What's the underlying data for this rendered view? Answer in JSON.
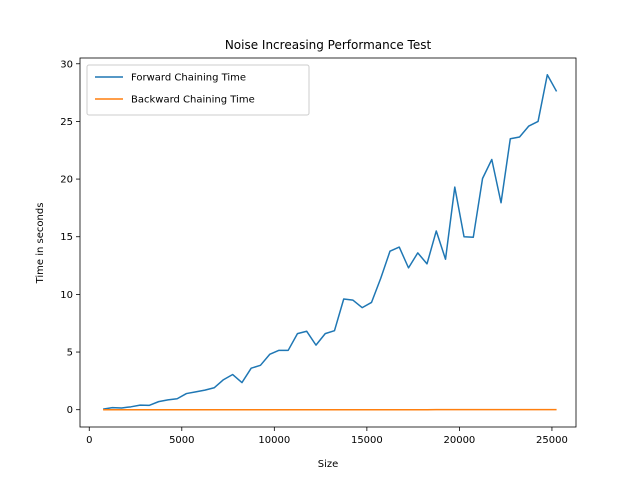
{
  "chart_data": {
    "type": "line",
    "title": "Noise Increasing Performance Test",
    "xlabel": "Size",
    "ylabel": "Time in seconds",
    "xlim": [
      -500,
      26300
    ],
    "ylim": [
      -1.5,
      30.5
    ],
    "xticks": [
      0,
      5000,
      10000,
      15000,
      20000,
      25000
    ],
    "xtick_labels": [
      "0",
      "5000",
      "10000",
      "15000",
      "20000",
      "25000"
    ],
    "yticks": [
      0,
      5,
      10,
      15,
      20,
      25,
      30
    ],
    "ytick_labels": [
      "0",
      "5",
      "10",
      "15",
      "20",
      "25",
      "30"
    ],
    "grid": false,
    "legend_position": "top-left",
    "series": [
      {
        "name": "Forward Chaining Time",
        "color": "#1f77b4",
        "x": [
          750,
          1250,
          1750,
          2250,
          2750,
          3250,
          3750,
          4250,
          4750,
          5250,
          5750,
          6250,
          6750,
          7250,
          7750,
          8250,
          8750,
          9250,
          9750,
          10250,
          10750,
          11250,
          11750,
          12250,
          12750,
          13250,
          13750,
          14250,
          14750,
          15250,
          15750,
          16250,
          16750,
          17250,
          17750,
          18250,
          18750,
          19250,
          19750,
          20250,
          20750,
          21250,
          21750,
          22250,
          22750,
          23250,
          23750,
          24250,
          24750,
          25250
        ],
        "y": [
          0.05,
          0.18,
          0.15,
          0.25,
          0.4,
          0.38,
          0.7,
          0.85,
          0.95,
          1.4,
          1.55,
          1.7,
          1.9,
          2.6,
          3.05,
          2.35,
          3.6,
          3.85,
          4.8,
          5.15,
          5.15,
          6.6,
          6.8,
          5.6,
          6.6,
          6.85,
          9.6,
          9.5,
          8.85,
          9.3,
          11.4,
          13.75,
          14.1,
          12.3,
          13.6,
          12.65,
          15.5,
          13.05,
          19.3,
          15.0,
          14.95,
          20.05,
          21.7,
          17.95,
          23.5,
          23.65,
          24.6,
          25.0,
          29.05,
          27.6
        ]
      },
      {
        "name": "Backward Chaining Time",
        "color": "#ff7f0e",
        "x": [
          750,
          1250,
          1750,
          2250,
          2750,
          3250,
          3750,
          4250,
          4750,
          5250,
          5750,
          6250,
          6750,
          7250,
          7750,
          8250,
          8750,
          9250,
          9750,
          10250,
          10750,
          11250,
          11750,
          12250,
          12750,
          13250,
          13750,
          14250,
          14750,
          15250,
          15750,
          16250,
          16750,
          17250,
          17750,
          18250,
          18750,
          19250,
          19750,
          20250,
          20750,
          21250,
          21750,
          22250,
          22750,
          23250,
          23750,
          24250,
          24750,
          25250
        ],
        "y": [
          0.0,
          0.0,
          0.0,
          0.0,
          0.0,
          0.0,
          0.0,
          0.0,
          0.0,
          0.0,
          0.0,
          0.0,
          0.0,
          0.0,
          0.0,
          0.0,
          0.0,
          0.0,
          0.0,
          0.0,
          0.0,
          0.0,
          0.0,
          0.0,
          0.0,
          0.0,
          0.0,
          0.0,
          0.0,
          0.0,
          0.0,
          0.0,
          0.0,
          0.0,
          0.0,
          0.0,
          0.01,
          0.01,
          0.01,
          0.01,
          0.01,
          0.01,
          0.01,
          0.01,
          0.01,
          0.01,
          0.01,
          0.01,
          0.01,
          0.01
        ]
      }
    ]
  }
}
